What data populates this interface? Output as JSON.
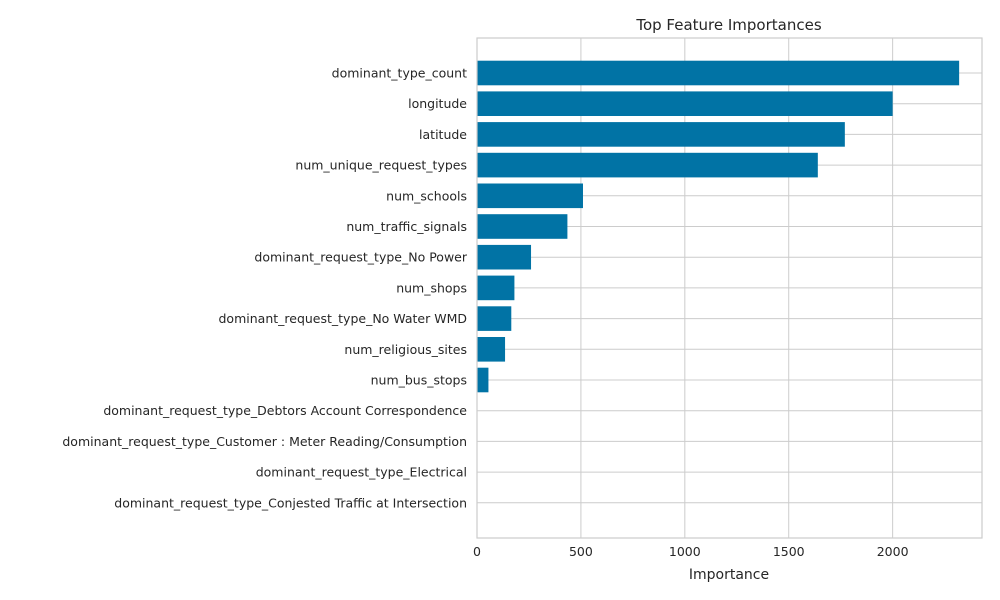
{
  "chart_data": {
    "type": "bar",
    "orientation": "horizontal",
    "title": "Top Feature Importances",
    "xlabel": "Importance",
    "ylabel": "",
    "categories": [
      "dominant_type_count",
      "longitude",
      "latitude",
      "num_unique_request_types",
      "num_schools",
      "num_traffic_signals",
      "dominant_request_type_No Power",
      "num_shops",
      "dominant_request_type_No Water WMD",
      "num_religious_sites",
      "num_bus_stops",
      "dominant_request_type_Debtors Account Correspondence",
      "dominant_request_type_Customer : Meter Reading/Consumption",
      "dominant_request_type_Electrical",
      "dominant_request_type_Conjested Traffic at Intersection"
    ],
    "values": [
      2320,
      2000,
      1770,
      1640,
      510,
      435,
      260,
      180,
      165,
      135,
      55,
      0,
      0,
      0,
      0
    ],
    "xlim": [
      0,
      2430
    ],
    "xticks": [
      0,
      500,
      1000,
      1500,
      2000
    ],
    "grid": true,
    "bar_color": "#0173a5"
  }
}
